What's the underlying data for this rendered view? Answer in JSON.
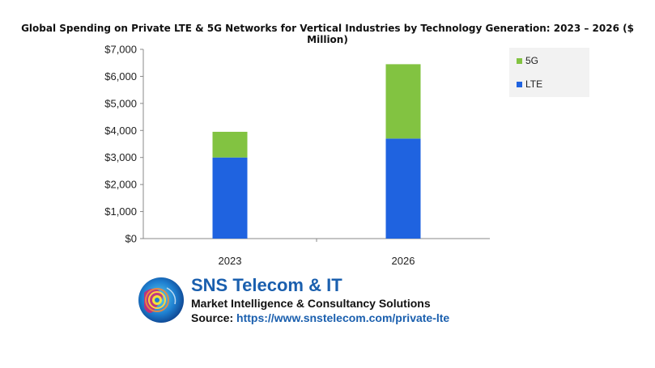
{
  "chart_data": {
    "type": "bar",
    "stacked": true,
    "title": "Global Spending on Private LTE & 5G Networks for Vertical Industries by Technology Generation: 2023 – 2026 ($ Million)",
    "categories": [
      "2023",
      "2026"
    ],
    "series": [
      {
        "name": "LTE",
        "values": [
          3000,
          3700
        ],
        "color": "#1f63e0"
      },
      {
        "name": "5G",
        "values": [
          950,
          2750
        ],
        "color": "#82c341"
      }
    ],
    "ylim": [
      0,
      7000
    ],
    "yticks": [
      0,
      1000,
      2000,
      3000,
      4000,
      5000,
      6000,
      7000
    ],
    "ytick_labels": [
      "$0",
      "$1,000",
      "$2,000",
      "$3,000",
      "$4,000",
      "$5,000",
      "$6,000",
      "$7,000"
    ],
    "legend": {
      "placement": "right",
      "order": [
        "5G",
        "LTE"
      ]
    },
    "grid": false
  },
  "branding": {
    "name": "SNS Telecom & IT",
    "tagline": "Market Intelligence & Consultancy Solutions",
    "source_label": "Source:",
    "source_url": "https://www.snstelecom.com/private-lte",
    "logo_icon": "sns-globe-logo-icon"
  }
}
